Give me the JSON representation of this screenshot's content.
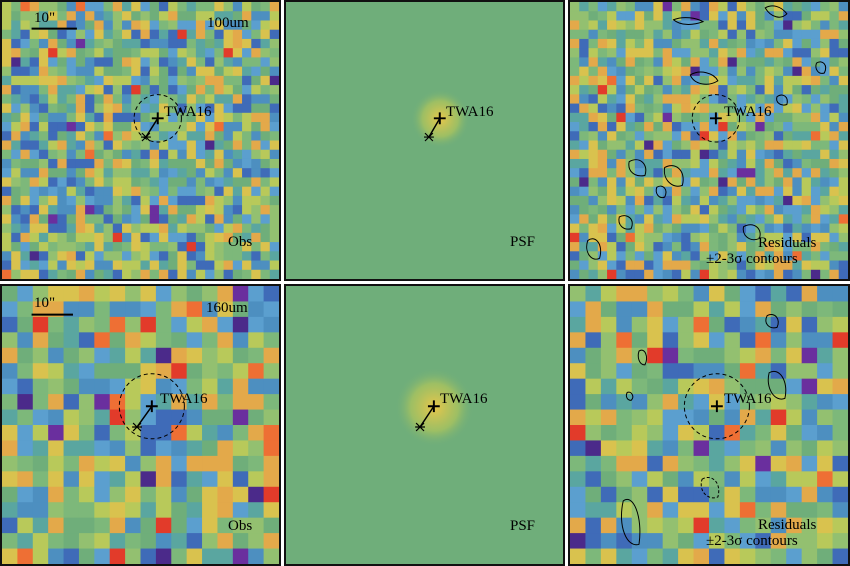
{
  "figure": {
    "rows": [
      {
        "band_label": "100um",
        "scale_label": "10\"",
        "source_name": "TWA16",
        "obs_label": "Obs",
        "psf_label": "PSF",
        "resid_label_1": "Residuals",
        "resid_label_2": "±2-3σ contours"
      },
      {
        "band_label": "160um",
        "scale_label": "10\"",
        "source_name": "TWA16",
        "obs_label": "Obs",
        "psf_label": "PSF",
        "resid_label_1": "Residuals",
        "resid_label_2": "±2-3σ contours"
      }
    ],
    "colors": {
      "background_green": "#6fae7a",
      "peak_yellow": "#e8c64a",
      "hot_red": "#e23b2a",
      "cool_blue": "#3f6bb8",
      "deep_purple": "#4b2a8a",
      "marker": "#000000"
    },
    "icons": {
      "source_marker": "plus-marker",
      "offset_marker": "asterisk-marker",
      "aperture": "dashed-circle"
    }
  }
}
